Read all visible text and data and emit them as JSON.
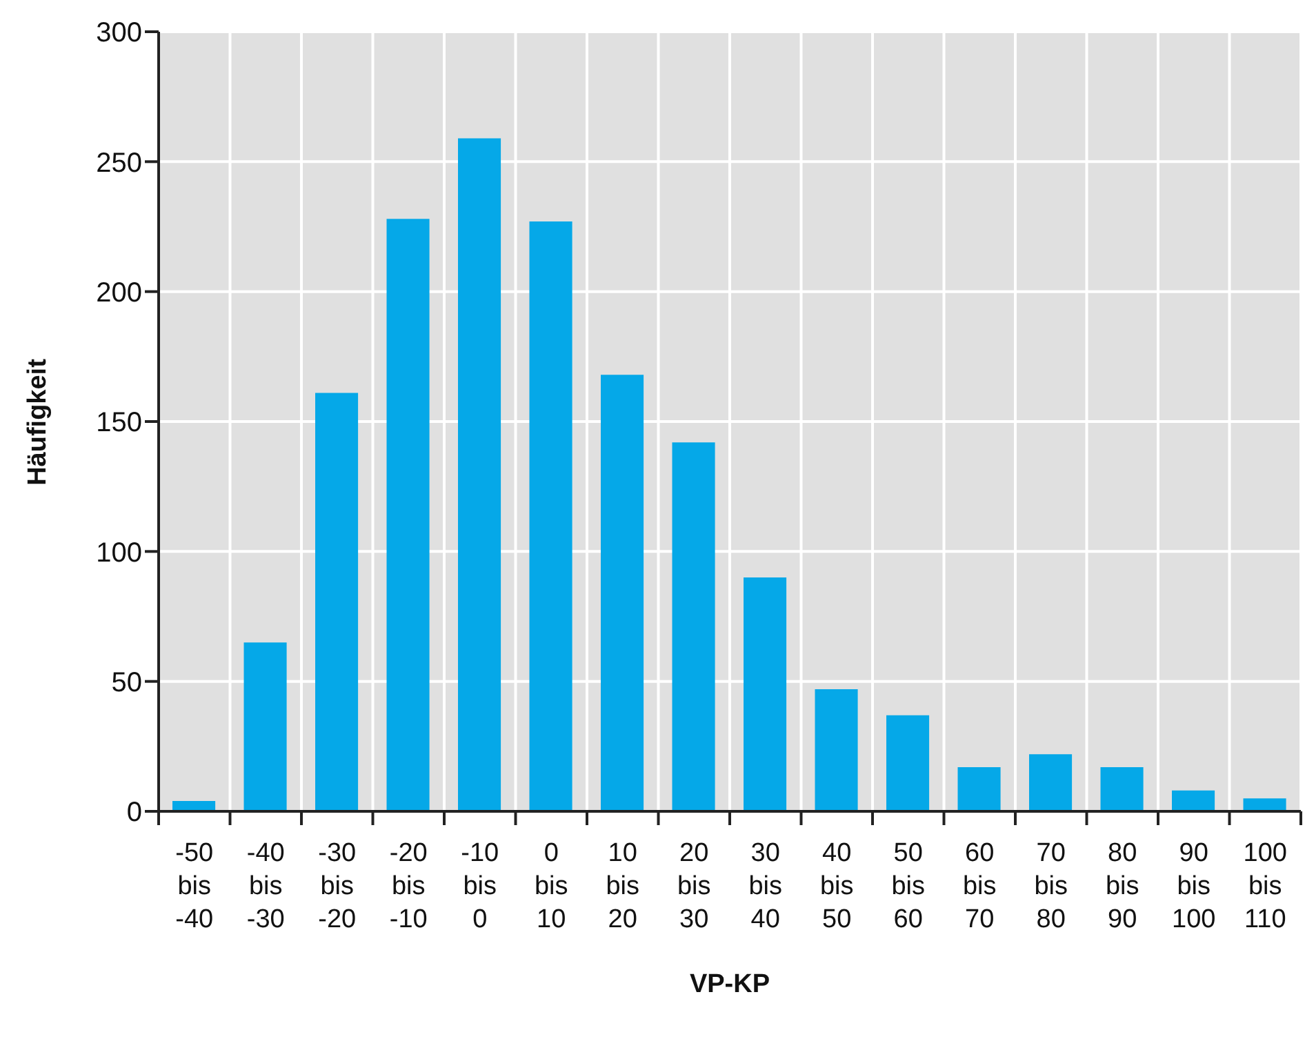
{
  "chart_data": {
    "type": "bar",
    "xlabel": "VP-KP",
    "ylabel": "Häufigkeit",
    "categories": [
      "-50 bis -40",
      "-40 bis -30",
      "-30 bis -20",
      "-20 bis -10",
      "-10 bis 0",
      "0 bis 10",
      "10 bis 20",
      "20 bis 30",
      "30 bis 40",
      "40 bis 50",
      "50 bis 60",
      "60 bis 70",
      "70 bis 80",
      "80 bis 90",
      "90 bis 100",
      "100 bis 110"
    ],
    "values": [
      4,
      65,
      161,
      228,
      259,
      227,
      168,
      142,
      90,
      47,
      37,
      17,
      22,
      17,
      8,
      5
    ],
    "color": "#05a8e8",
    "ylim": [
      0,
      300
    ],
    "yticks": [
      0,
      50,
      100,
      150,
      200,
      250,
      300
    ],
    "grid": true
  }
}
